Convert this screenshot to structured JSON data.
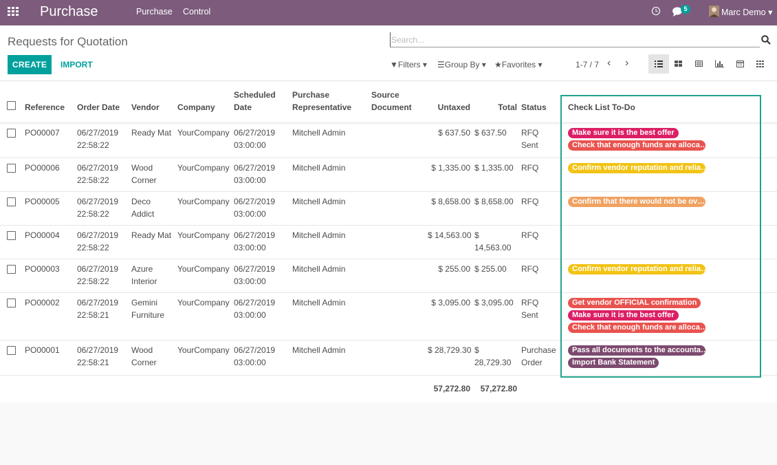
{
  "navbar": {
    "app": "Purchase",
    "menu": [
      "Purchase",
      "Control"
    ],
    "messages_count": 5,
    "user": "Marc Demo"
  },
  "control_panel": {
    "title": "Requests for Quotation",
    "search_placeholder": "Search...",
    "buttons": [
      "CREATE",
      "IMPORT"
    ],
    "filters": [
      "Filters",
      "Group By",
      "Favorites"
    ],
    "pager": "1-7 / 7"
  },
  "table": {
    "columns": [
      "Reference",
      "Order Date",
      "Vendor",
      "Company",
      "Scheduled Date",
      "Purchase Representative",
      "Source Document",
      "Untaxed",
      "Total",
      "Status",
      "Check List To-Do"
    ],
    "rows": [
      {
        "reference": "PO00007",
        "order_date": "06/27/2019 22:58:22",
        "vendor": "Ready Mat",
        "company": "YourCompany",
        "scheduled_date": "06/27/2019 03:00:00",
        "representative": "Mitchell Admin",
        "untaxed": "$ 637.50",
        "total": "$ 637.50",
        "status": "RFQ Sent",
        "tags": [
          {
            "text": "Make sure it is the best offer",
            "color": "#dc1f64"
          },
          {
            "text": "Check that enough funds are alloca…",
            "color": "#e9534f"
          }
        ]
      },
      {
        "reference": "PO00006",
        "order_date": "06/27/2019 22:58:22",
        "vendor": "Wood Corner",
        "company": "YourCompany",
        "scheduled_date": "06/27/2019 03:00:00",
        "representative": "Mitchell Admin",
        "untaxed": "$ 1,335.00",
        "total": "$ 1,335.00",
        "status": "RFQ",
        "tags": [
          {
            "text": "Confirm vendor reputation and relia…",
            "color": "#f2c315"
          }
        ]
      },
      {
        "reference": "PO00005",
        "order_date": "06/27/2019 22:58:22",
        "vendor": "Deco Addict",
        "company": "YourCompany",
        "scheduled_date": "06/27/2019 03:00:00",
        "representative": "Mitchell Admin",
        "untaxed": "$ 8,658.00",
        "total": "$ 8,658.00",
        "status": "RFQ",
        "tags": [
          {
            "text": "Confirm that there would not be ov…",
            "color": "#f0a262"
          }
        ]
      },
      {
        "reference": "PO00004",
        "order_date": "06/27/2019 22:58:22",
        "vendor": "Ready Mat",
        "company": "YourCompany",
        "scheduled_date": "06/27/2019 03:00:00",
        "representative": "Mitchell Admin",
        "untaxed": "$ 14,563.00",
        "total": "$ 14,563.00",
        "status": "RFQ",
        "tags": []
      },
      {
        "reference": "PO00003",
        "order_date": "06/27/2019 22:58:22",
        "vendor": "Azure Interior",
        "company": "YourCompany",
        "scheduled_date": "06/27/2019 03:00:00",
        "representative": "Mitchell Admin",
        "untaxed": "$ 255.00",
        "total": "$ 255.00",
        "status": "RFQ",
        "tags": [
          {
            "text": "Confirm vendor reputation and relia…",
            "color": "#f2c315"
          }
        ]
      },
      {
        "reference": "PO00002",
        "order_date": "06/27/2019 22:58:21",
        "vendor": "Gemini Furniture",
        "company": "YourCompany",
        "scheduled_date": "06/27/2019 03:00:00",
        "representative": "Mitchell Admin",
        "untaxed": "$ 3,095.00",
        "total": "$ 3,095.00",
        "status": "RFQ Sent",
        "tags": [
          {
            "text": "Get vendor OFFICIAL confirmation",
            "color": "#e9534f"
          },
          {
            "text": "Make sure it is the best offer",
            "color": "#dc1f64"
          },
          {
            "text": "Check that enough funds are alloca…",
            "color": "#e9534f"
          }
        ]
      },
      {
        "reference": "PO00001",
        "order_date": "06/27/2019 22:58:21",
        "vendor": "Wood Corner",
        "company": "YourCompany",
        "scheduled_date": "06/27/2019 03:00:00",
        "representative": "Mitchell Admin",
        "untaxed": "$ 28,729.30",
        "total": "$ 28,729.30",
        "status": "Purchase Order",
        "tags": [
          {
            "text": "Pass all documents to the accounta…",
            "color": "#7d4a6f"
          },
          {
            "text": "Import Bank Statement",
            "color": "#7d4a6f"
          }
        ]
      }
    ],
    "totals": {
      "untaxed": "57,272.80",
      "total": "57,272.80"
    }
  }
}
